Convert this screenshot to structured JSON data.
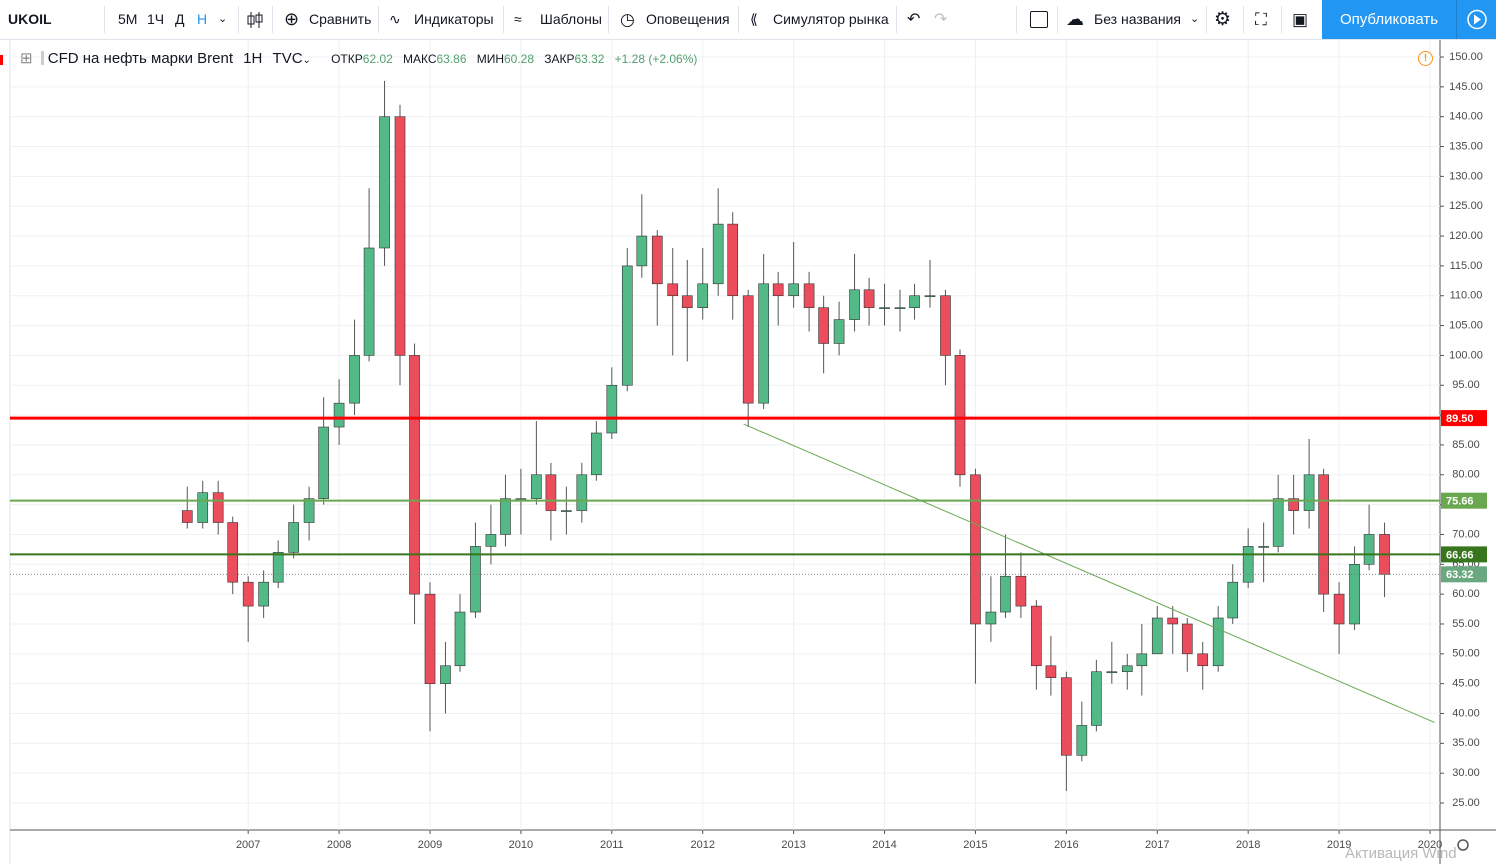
{
  "toolbar": {
    "symbol": "UKOIL",
    "intervals": [
      "5М",
      "1Ч",
      "Д",
      "Н"
    ],
    "compare": "Сравнить",
    "indicators": "Индикаторы",
    "templates": "Шаблоны",
    "alerts": "Оповещения",
    "simulator": "Симулятор рынка",
    "layout_name": "Без названия",
    "publish": "Опубликовать"
  },
  "legend": {
    "title": "CFD на нефть марки Brent",
    "interval": "1Н",
    "source": "TVC",
    "open_label": "ОТКР",
    "open": "62.02",
    "high_label": "МАКС",
    "high": "63.86",
    "low_label": "МИН",
    "low": "60.28",
    "close_label": "ЗАКР",
    "close": "63.32",
    "change": "+1.28 (+2.06%)"
  },
  "watermark": "Активация Wind",
  "chart_data": {
    "type": "candlestick",
    "x": [
      2006.33,
      2006.5,
      2006.67,
      2006.83,
      2007,
      2007.17,
      2007.33,
      2007.5,
      2007.67,
      2007.83,
      2008,
      2008.17,
      2008.33,
      2008.5,
      2008.67,
      2008.83,
      2009,
      2009.17,
      2009.33,
      2009.5,
      2009.67,
      2009.83,
      2010,
      2010.17,
      2010.33,
      2010.5,
      2010.67,
      2010.83,
      2011,
      2011.17,
      2011.33,
      2011.5,
      2011.67,
      2011.83,
      2012,
      2012.17,
      2012.33,
      2012.5,
      2012.67,
      2012.83,
      2013,
      2013.17,
      2013.33,
      2013.5,
      2013.67,
      2013.83,
      2014,
      2014.17,
      2014.33,
      2014.5,
      2014.67,
      2014.83,
      2015,
      2015.17,
      2015.33,
      2015.5,
      2015.67,
      2015.83,
      2016,
      2016.17,
      2016.33,
      2016.5,
      2016.67,
      2016.83,
      2017,
      2017.17,
      2017.33,
      2017.5,
      2017.67,
      2017.83,
      2018,
      2018.17,
      2018.33,
      2018.5,
      2018.67,
      2018.83,
      2019,
      2019.17,
      2019.33,
      2019.5
    ],
    "open": [
      74,
      72,
      77,
      72,
      62,
      58,
      62,
      67,
      72,
      76,
      88,
      92,
      100,
      118,
      140,
      100,
      60,
      45,
      48,
      57,
      68,
      70,
      76,
      76,
      80,
      74,
      74,
      80,
      87,
      95,
      115,
      120,
      112,
      110,
      108,
      112,
      122,
      110,
      92,
      112,
      110,
      112,
      108,
      102,
      106,
      111,
      108,
      108,
      108,
      110,
      110,
      100,
      80,
      55,
      57,
      63,
      58,
      48,
      46,
      33,
      38,
      47,
      47,
      48,
      50,
      56,
      55,
      50,
      48,
      56,
      62,
      68,
      68,
      76,
      74,
      80,
      60,
      55,
      65,
      70
    ],
    "high": [
      78,
      79,
      79,
      73,
      63,
      64,
      69,
      75,
      78,
      93,
      96,
      106,
      128,
      146,
      142,
      102,
      62,
      52,
      60,
      72,
      75,
      80,
      81,
      89,
      82,
      78,
      82,
      89,
      98,
      118,
      127,
      121,
      118,
      116,
      118,
      128,
      124,
      111,
      117,
      114,
      119,
      114,
      110,
      109,
      117,
      113,
      112,
      111,
      112,
      116,
      111,
      101,
      81,
      63,
      70,
      67,
      59,
      53,
      47,
      42,
      49,
      52,
      50,
      55,
      58,
      58,
      56,
      52,
      58,
      65,
      71,
      72,
      80,
      80,
      86,
      81,
      62,
      68,
      75,
      72
    ],
    "low": [
      71,
      71,
      70,
      60,
      52,
      56,
      61,
      66,
      69,
      75,
      85,
      90,
      99,
      115,
      95,
      55,
      37,
      40,
      47,
      56,
      65,
      68,
      70,
      75,
      69,
      70,
      72,
      79,
      86,
      94,
      113,
      105,
      100,
      99,
      106,
      110,
      106,
      88,
      91,
      105,
      108,
      104,
      97,
      100,
      104,
      105,
      105,
      104,
      106,
      108,
      95,
      78,
      45,
      52,
      56,
      56,
      44,
      43,
      27,
      32,
      37,
      45,
      44,
      43,
      50,
      50,
      47,
      44,
      47,
      55,
      61,
      62,
      67,
      70,
      71,
      57,
      50,
      54,
      64,
      59.5
    ],
    "close": [
      72,
      77,
      72,
      62,
      58,
      62,
      67,
      72,
      76,
      88,
      92,
      100,
      118,
      140,
      100,
      60,
      45,
      48,
      57,
      68,
      70,
      76,
      76,
      80,
      74,
      74,
      80,
      87,
      95,
      115,
      120,
      112,
      110,
      108,
      112,
      122,
      110,
      92,
      112,
      110,
      112,
      108,
      102,
      106,
      111,
      108,
      108,
      108,
      110,
      110,
      100,
      80,
      55,
      57,
      63,
      58,
      48,
      46,
      33,
      38,
      47,
      47,
      48,
      50,
      56,
      55,
      50,
      48,
      56,
      62,
      68,
      68,
      76,
      74,
      80,
      60,
      55,
      65,
      70,
      63.32
    ],
    "up_color": "#53b987",
    "down_color": "#eb4d5c",
    "wick_color": "#555555",
    "xlim": [
      2004.38,
      2020.11
    ],
    "xticks": [
      2007,
      2008,
      2009,
      2010,
      2011,
      2012,
      2013,
      2014,
      2015,
      2016,
      2017,
      2018,
      2019,
      2020
    ],
    "ylim": [
      20.48,
      152.85
    ],
    "yticks": [
      {
        "value": 25,
        "label": "25.00"
      },
      {
        "value": 30,
        "label": "30.00"
      },
      {
        "value": 35,
        "label": "35.00"
      },
      {
        "value": 40,
        "label": "40.00"
      },
      {
        "value": 45,
        "label": "45.00"
      },
      {
        "value": 50,
        "label": "50.00"
      },
      {
        "value": 55,
        "label": "55.00"
      },
      {
        "value": 60,
        "label": "60.00"
      },
      {
        "value": 65,
        "label": "65.00"
      },
      {
        "value": 70,
        "label": "70.00"
      },
      {
        "value": 75,
        "label": "75.00"
      },
      {
        "value": 80,
        "label": "80.00"
      },
      {
        "value": 85,
        "label": "85.00"
      },
      {
        "value": 90,
        "label": "90.00"
      },
      {
        "value": 95,
        "label": "95.00"
      },
      {
        "value": 100,
        "label": "100.00"
      },
      {
        "value": 105,
        "label": "105.00"
      },
      {
        "value": 110,
        "label": "110.00"
      },
      {
        "value": 115,
        "label": "115.00"
      },
      {
        "value": 120,
        "label": "120.00"
      },
      {
        "value": 125,
        "label": "125.00"
      },
      {
        "value": 130,
        "label": "130.00"
      },
      {
        "value": 135,
        "label": "135.00"
      },
      {
        "value": 140,
        "label": "140.00"
      },
      {
        "value": 145,
        "label": "145.00"
      },
      {
        "value": 150,
        "label": "150.00"
      }
    ],
    "grid": true,
    "levels": [
      {
        "value": 89.5,
        "label": "89.50",
        "color": "#ff0000",
        "line_style": "solid"
      },
      {
        "value": 75.66,
        "label": "75.66",
        "color": "#6aa84f",
        "line_style": "solid"
      },
      {
        "value": 66.66,
        "label": "66.66",
        "color": "#38761d",
        "line_style": "solid"
      },
      {
        "value": 63.32,
        "label": "63.32",
        "color": "#6aa880",
        "line_style": "dotted"
      }
    ],
    "trendline": {
      "x": [
        2012.45,
        2020.05
      ],
      "y": [
        88.5,
        38.5
      ],
      "color": "#6aa84f"
    }
  }
}
